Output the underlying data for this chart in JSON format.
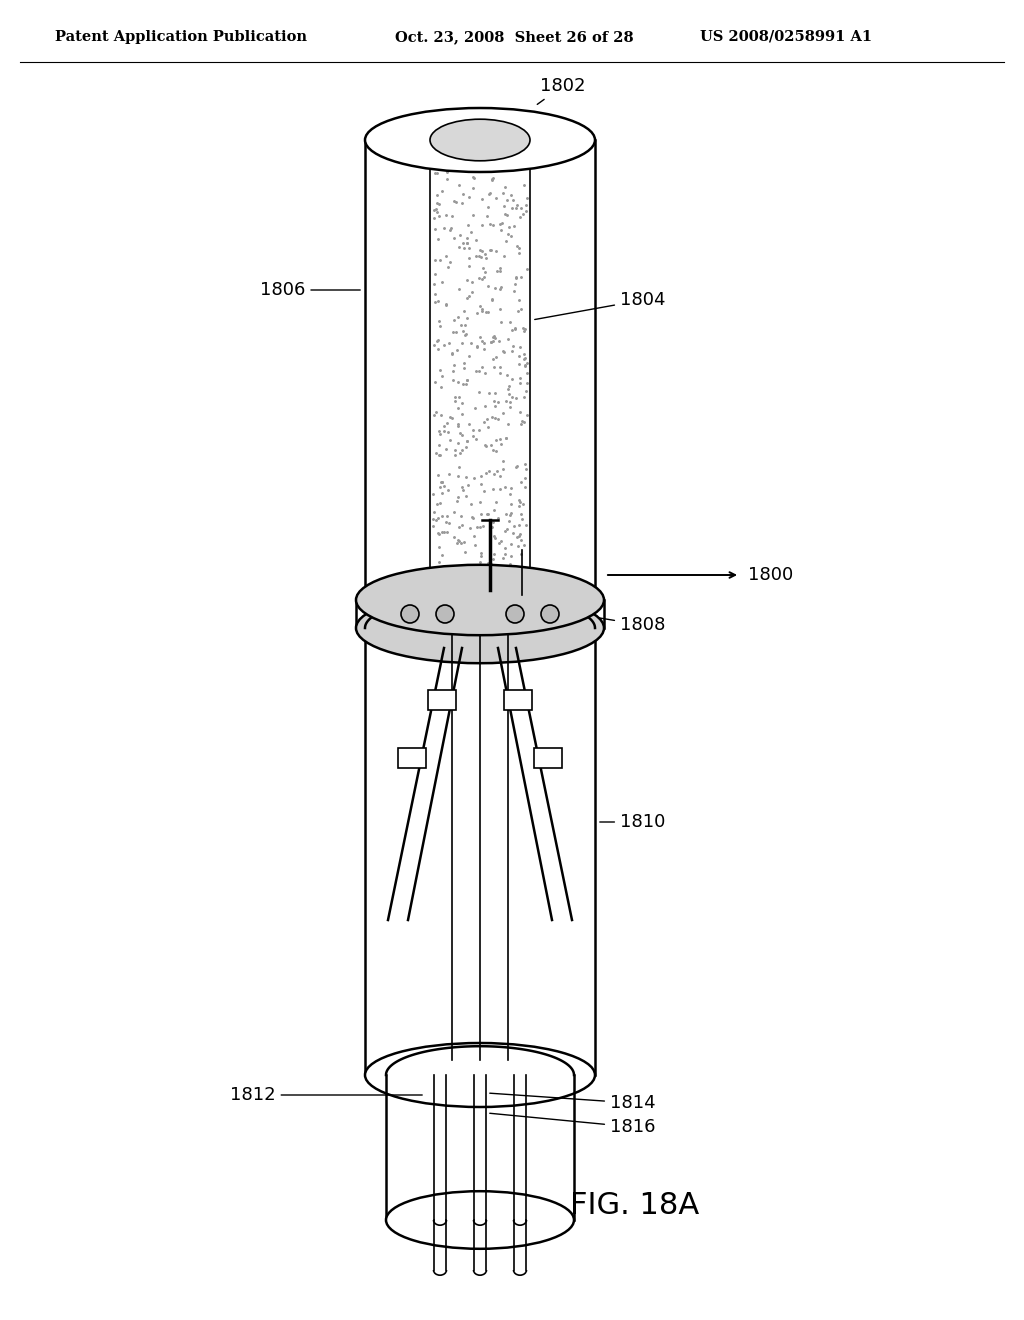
{
  "title_left": "Patent Application Publication",
  "title_center": "Oct. 23, 2008  Sheet 26 of 28",
  "title_right": "US 2008/0258991 A1",
  "fig_label": "FIG. 18A",
  "bg_color": "#ffffff",
  "line_color": "#000000"
}
